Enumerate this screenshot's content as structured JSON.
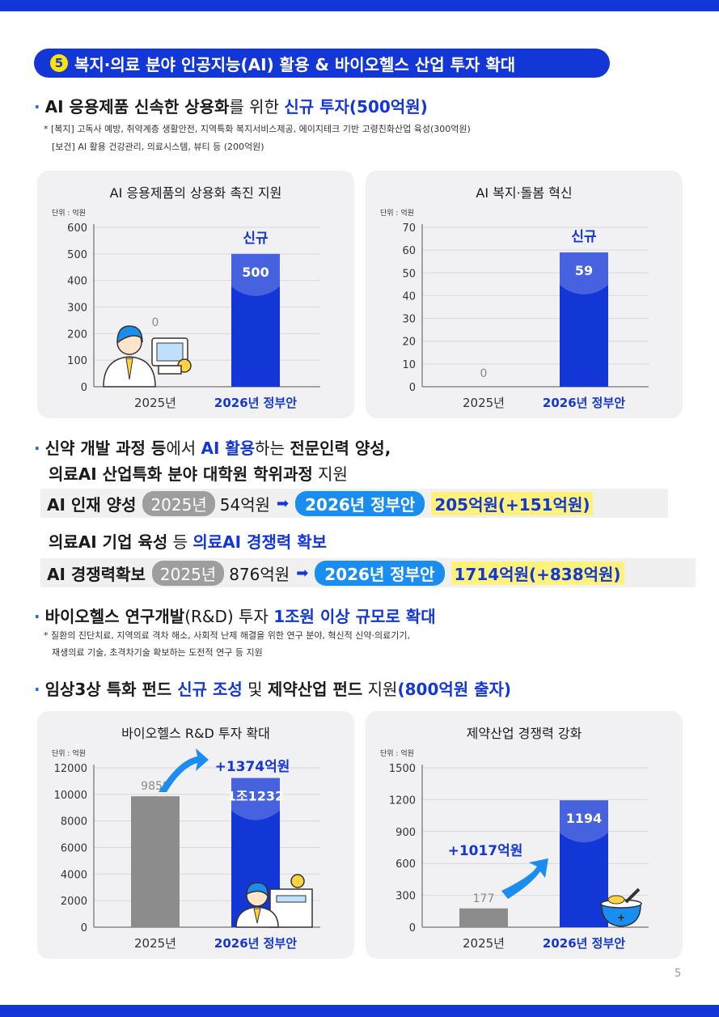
{
  "section": {
    "number": "5",
    "title": "복지·의료 분야 인공지능(AI) 활용 & 바이오헬스 산업 투자 확대"
  },
  "b1": {
    "p1": "AI 응용제품 신속한 상용화",
    "p2": "를 위한 ",
    "p3": "신규 투자(500억원)"
  },
  "b1_notes": [
    "* [복지] 고독사 예방, 취약계층 생활안전, 지역특화 복지서비스제공, 에이지테크 기반 고령친화산업 육성(300억원)",
    "[보건] AI 활용 건강관리, 의료시스템, 뷰티 등 (200억원)"
  ],
  "b2": {
    "p1": "신약 개발 과정 등",
    "p2": "에서 ",
    "p3": "AI 활용",
    "p4": "하는 ",
    "p5": "전문인력 양성,",
    "line2a": "의료AI 산업특화 분야 대학원 학위과정",
    "line2b": " 지원"
  },
  "strip1": {
    "label": "AI 인재 양성",
    "year_old": "2025년",
    "value_old": "54억원",
    "arrow": "➡",
    "year_new": "2026년 정부안",
    "value_new": "205억원(+151억원)"
  },
  "sub2": {
    "p1": "의료AI 기업 육성",
    "p2": " 등 ",
    "p3": "의료AI 경쟁력 확보"
  },
  "strip2": {
    "label": "AI 경쟁력확보",
    "year_old": "2025년",
    "value_old": "876억원",
    "arrow": "➡",
    "year_new": "2026년 정부안",
    "value_new": "1714억원(+838억원)"
  },
  "b3": {
    "p1": "바이오헬스 연구개발",
    "p2": "(R&D) 투자 ",
    "p3": "1조원 이상 규모로 확대"
  },
  "b3_notes": [
    "* 질환의 진단치료, 지역의료 격차 해소, 사회적 난제 해결을 위한 연구 분야, 혁신적 신약·의료기기,",
    "재생의료 기술, 초격차기술 확보하는 도전적 연구 등 지원"
  ],
  "b4": {
    "p1": "임상3상 특화 펀드 ",
    "p2": "신규 조성",
    "p3": " 및 ",
    "p4": "제약산업 펀드",
    "p5": " 지원",
    "p6": "(800억원 출자)"
  },
  "page_number": "5",
  "colors": {
    "blue": "#1336d6",
    "gray_bar": "#8c8c8c",
    "pill_blue": "#1a8ef0",
    "highlight": "#fff27a"
  },
  "chart_data": [
    {
      "type": "bar",
      "title": "AI 응용제품의 상용화 촉진 지원",
      "unit": "단위 : 억원",
      "categories": [
        "2025년",
        "2026년 정부안"
      ],
      "values": [
        0,
        500
      ],
      "value_labels": [
        "0",
        "500"
      ],
      "badge": "신규",
      "ylim": [
        0,
        600
      ],
      "yticks": [
        "600",
        "500",
        "400",
        "300",
        "200",
        "100",
        "0"
      ],
      "tick_values": [
        600,
        500,
        400,
        300,
        200,
        100,
        0
      ],
      "annotation": "",
      "icon": "doctor-computer-icon"
    },
    {
      "type": "bar",
      "title": "AI 복지·돌봄 혁신",
      "unit": "단위 : 억원",
      "categories": [
        "2025년",
        "2026년 정부안"
      ],
      "values": [
        0,
        59
      ],
      "value_labels": [
        "0",
        "59"
      ],
      "badge": "신규",
      "ylim": [
        0,
        70
      ],
      "yticks": [
        "70",
        "60",
        "50",
        "40",
        "30",
        "20",
        "10",
        "0"
      ],
      "tick_values": [
        70,
        60,
        50,
        40,
        30,
        20,
        10,
        0
      ],
      "annotation": "",
      "icon": ""
    },
    {
      "type": "bar",
      "title": "바이오헬스 R&D 투자 확대",
      "unit": "단위 : 억원",
      "categories": [
        "2025년",
        "2026년 정부안"
      ],
      "values": [
        9858,
        11232
      ],
      "value_labels": [
        "9858",
        "1조1232"
      ],
      "badge": "",
      "ylim": [
        0,
        12000
      ],
      "yticks": [
        "12000",
        "10000",
        "8000",
        "6000",
        "4000",
        "2000",
        "0"
      ],
      "tick_values": [
        12000,
        10000,
        8000,
        6000,
        4000,
        2000,
        0
      ],
      "annotation": "+1374억원",
      "icon": "doctor-hospital-icon"
    },
    {
      "type": "bar",
      "title": "제약산업 경쟁력 강화",
      "unit": "단위 : 억원",
      "categories": [
        "2025년",
        "2026년 정부안"
      ],
      "values": [
        177,
        1194
      ],
      "value_labels": [
        "177",
        "1194"
      ],
      "badge": "",
      "ylim": [
        0,
        1500
      ],
      "yticks": [
        "1500",
        "1200",
        "900",
        "600",
        "300",
        "0"
      ],
      "tick_values": [
        1500,
        1200,
        900,
        600,
        300,
        0
      ],
      "annotation": "+1017억원",
      "icon": "pill-bowl-icon"
    }
  ]
}
